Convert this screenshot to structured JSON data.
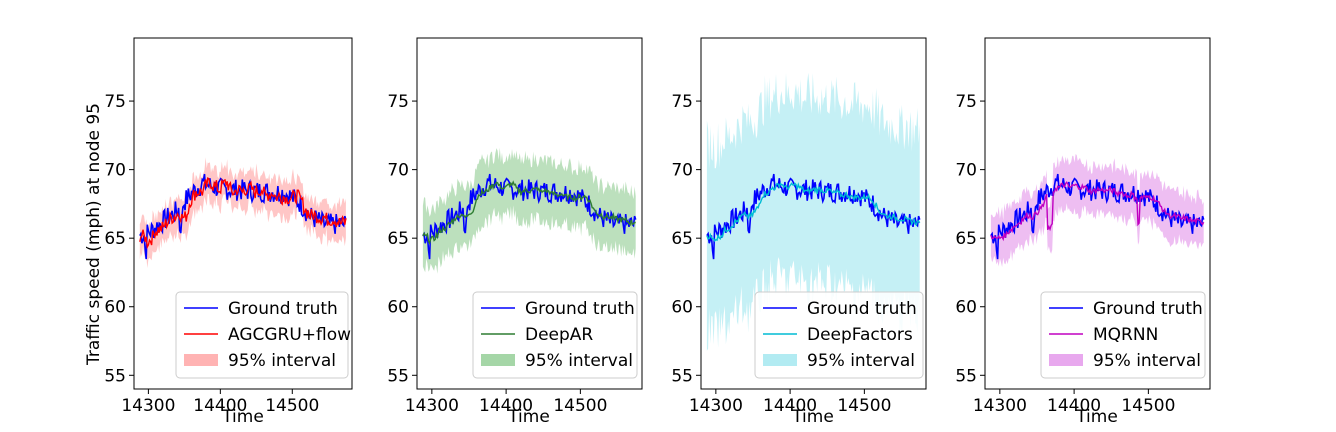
{
  "figure": {
    "ylabel": "Traffic speed (mph) at node 95",
    "xlabel": "Time"
  },
  "colors": {
    "ground_truth": "#0000ff",
    "agcgru": "#ff0000",
    "agcgru_band": "#ffb3b3",
    "deepar": "#2e7d32",
    "deepar_band": "#a5d6a7",
    "deepfactors": "#00bcd4",
    "deepfactors_band": "#b2ebf2",
    "mqrnn": "#c000c0",
    "mqrnn_band": "#e8a8ee"
  },
  "chart_data": [
    {
      "type": "line",
      "title": "",
      "xlabel": "Time",
      "ylabel": "Traffic speed (mph) at node 95",
      "xlim": [
        14280,
        14583
      ],
      "ylim": [
        54,
        79.6
      ],
      "xticks": [
        14300,
        14400,
        14500
      ],
      "yticks": [
        55,
        60,
        65,
        70,
        75
      ],
      "legend": "lower-right",
      "series": [
        {
          "name": "Ground truth",
          "kind": "line",
          "color": "#0000ff"
        },
        {
          "name": "AGCGRU+flow",
          "kind": "line",
          "color": "#ff0000"
        },
        {
          "name": "95% interval",
          "kind": "band",
          "color": "#ffb3b3",
          "mean_half_width": 1.3
        }
      ]
    },
    {
      "type": "line",
      "title": "",
      "xlabel": "Time",
      "ylabel": "",
      "xlim": [
        14280,
        14583
      ],
      "ylim": [
        54,
        79.6
      ],
      "xticks": [
        14300,
        14400,
        14500
      ],
      "yticks": [
        55,
        60,
        65,
        70,
        75
      ],
      "legend": "lower-right",
      "series": [
        {
          "name": "Ground truth",
          "kind": "line",
          "color": "#0000ff"
        },
        {
          "name": "DeepAR",
          "kind": "line",
          "color": "#2e7d32"
        },
        {
          "name": "95% interval",
          "kind": "band",
          "color": "#a5d6a7",
          "mean_half_width": 2.2
        }
      ]
    },
    {
      "type": "line",
      "title": "",
      "xlabel": "Time",
      "ylabel": "",
      "xlim": [
        14280,
        14583
      ],
      "ylim": [
        54,
        79.6
      ],
      "xticks": [
        14300,
        14400,
        14500
      ],
      "yticks": [
        55,
        60,
        65,
        70,
        75
      ],
      "legend": "lower-right",
      "series": [
        {
          "name": "Ground truth",
          "kind": "line",
          "color": "#0000ff"
        },
        {
          "name": "DeepFactors",
          "kind": "line",
          "color": "#00bcd4"
        },
        {
          "name": "95% interval",
          "kind": "band",
          "color": "#b2ebf2",
          "mean_half_width": 6.8
        }
      ]
    },
    {
      "type": "line",
      "title": "",
      "xlabel": "Time",
      "ylabel": "",
      "xlim": [
        14280,
        14583
      ],
      "ylim": [
        54,
        79.6
      ],
      "xticks": [
        14300,
        14400,
        14500
      ],
      "yticks": [
        55,
        60,
        65,
        70,
        75
      ],
      "legend": "lower-right",
      "series": [
        {
          "name": "Ground truth",
          "kind": "line",
          "color": "#0000ff"
        },
        {
          "name": "MQRNN",
          "kind": "line",
          "color": "#c000c0"
        },
        {
          "name": "95% interval",
          "kind": "band",
          "color": "#e8a8ee",
          "mean_half_width": 1.8
        }
      ]
    }
  ],
  "series_shape": {
    "x_start": 14288,
    "x_end": 14575,
    "knots": [
      [
        14288,
        65.2
      ],
      [
        14300,
        65.4
      ],
      [
        14320,
        66.2
      ],
      [
        14340,
        67.0
      ],
      [
        14360,
        68.3
      ],
      [
        14375,
        69.0
      ],
      [
        14400,
        68.6
      ],
      [
        14430,
        68.5
      ],
      [
        14460,
        68.4
      ],
      [
        14490,
        68.3
      ],
      [
        14510,
        67.6
      ],
      [
        14525,
        66.6
      ],
      [
        14545,
        66.0
      ],
      [
        14575,
        66.0
      ]
    ]
  }
}
